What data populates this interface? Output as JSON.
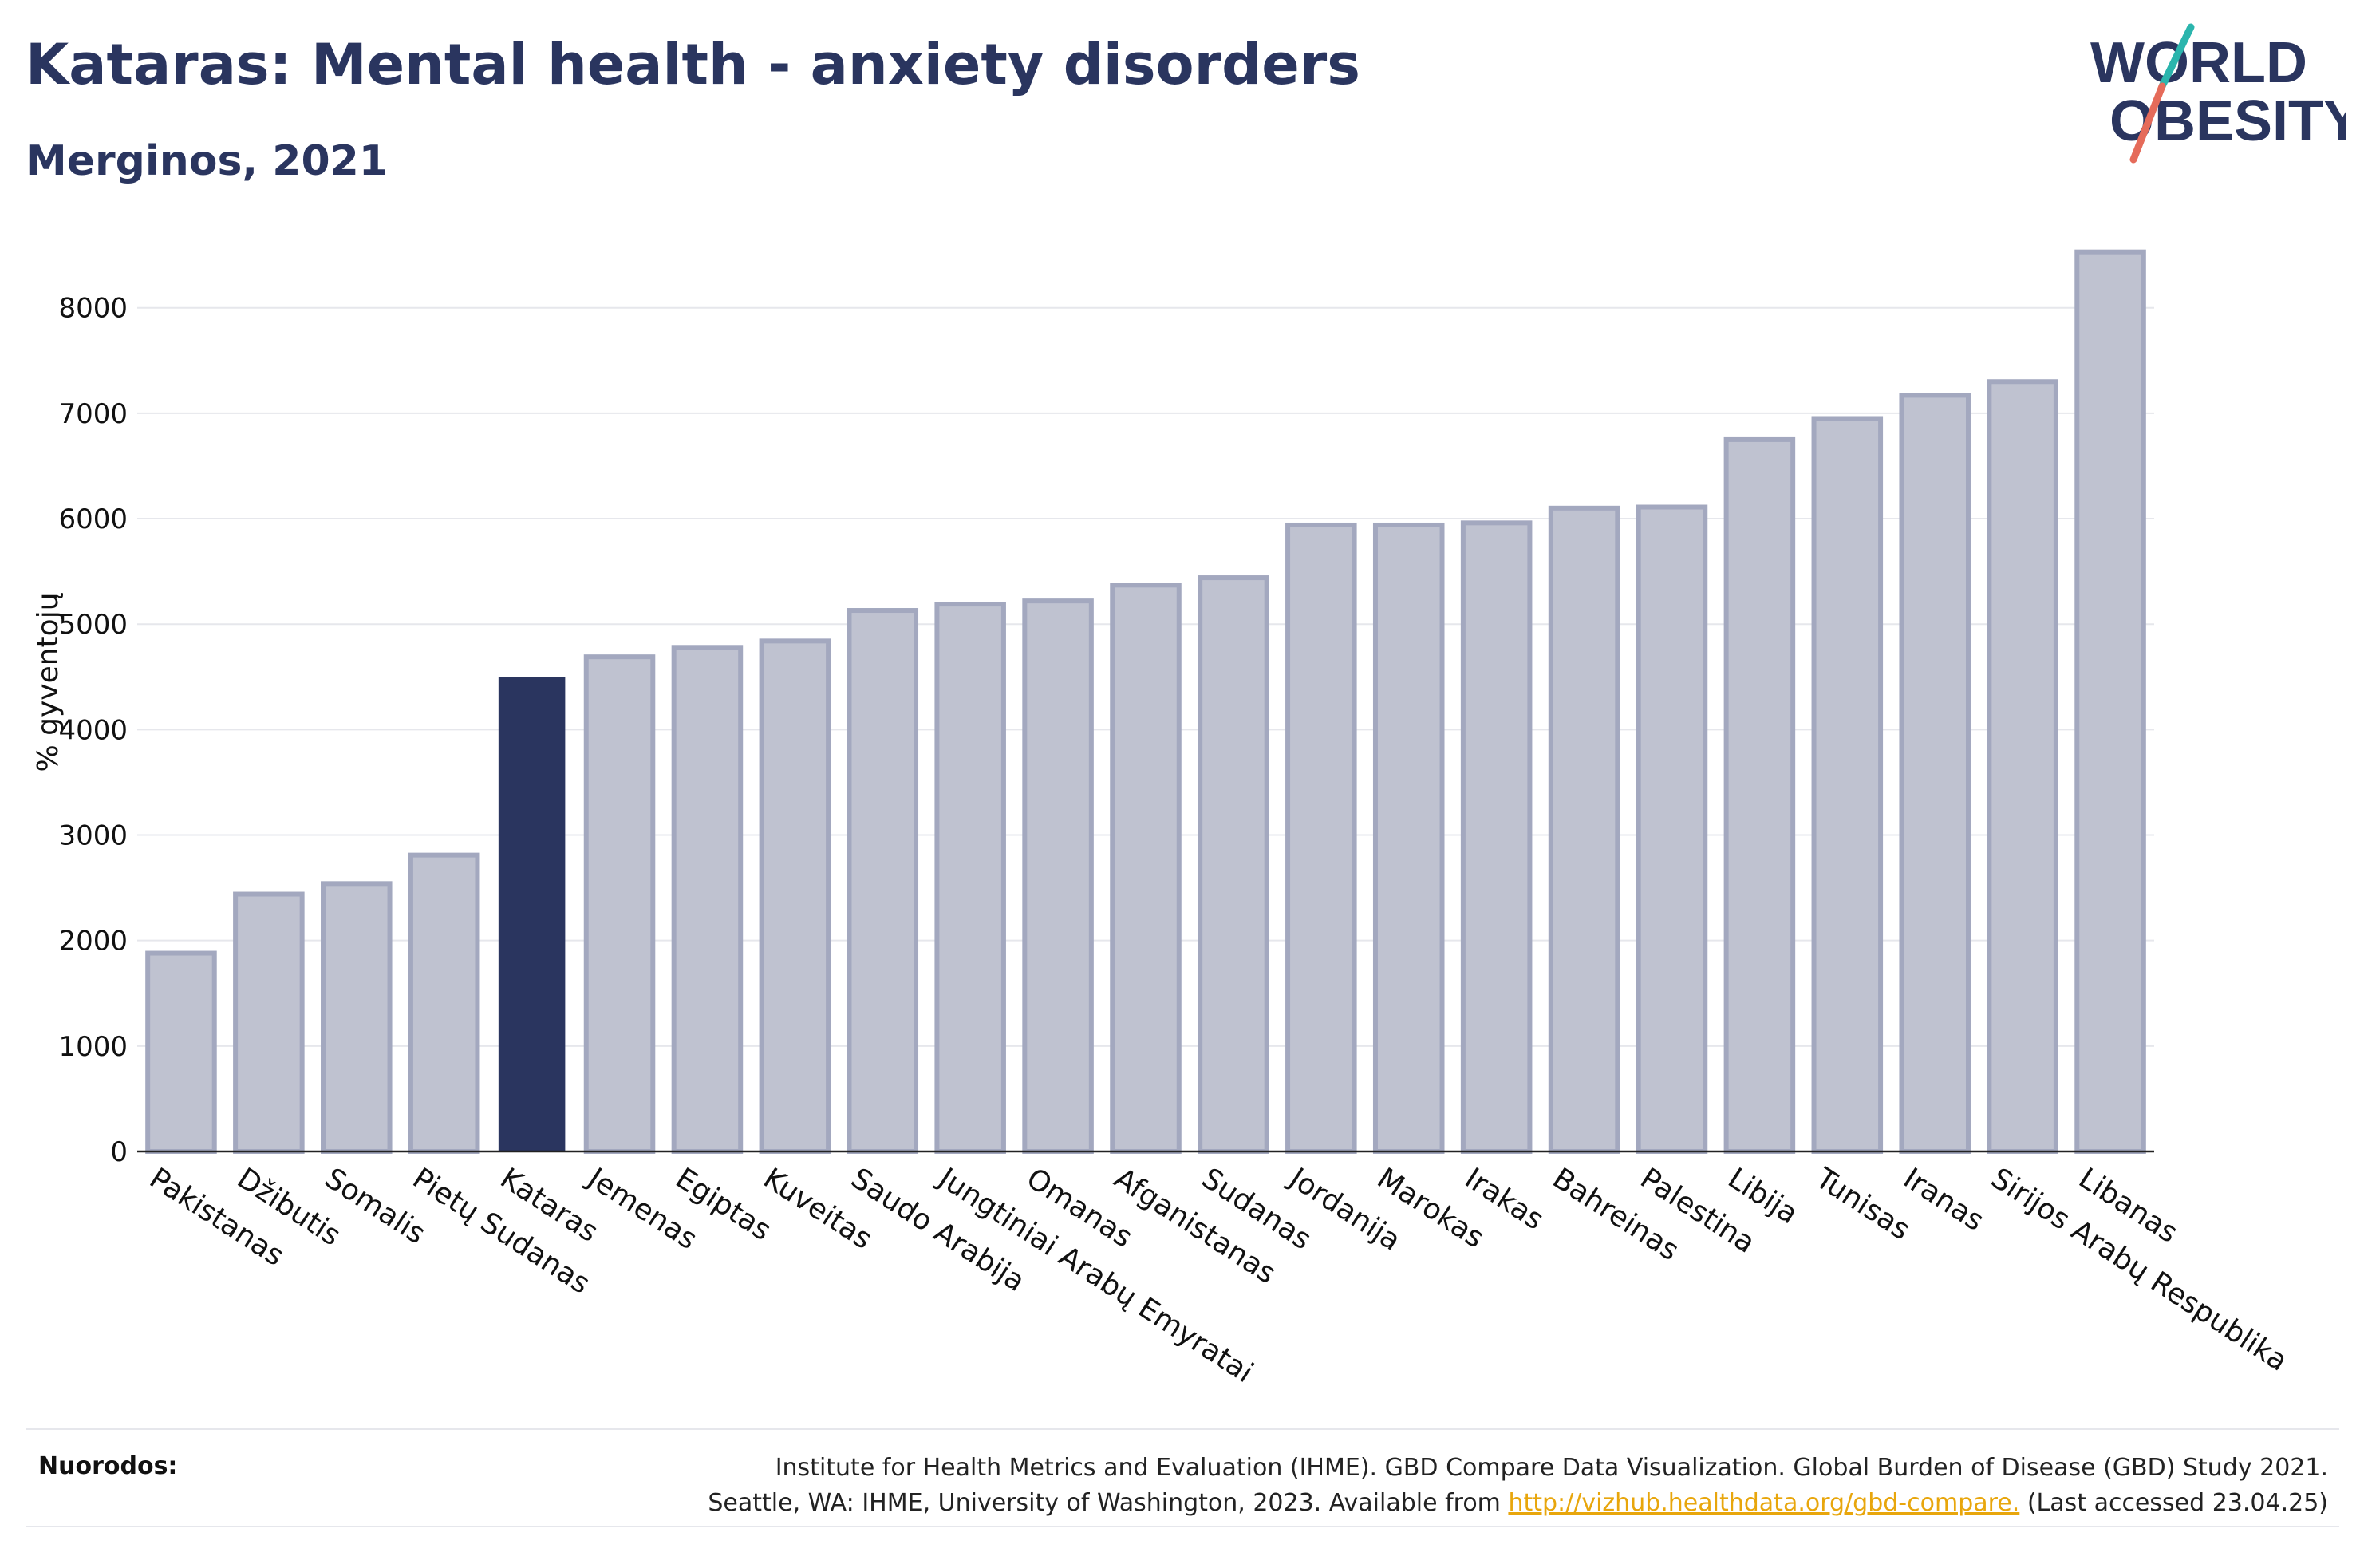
{
  "header": {
    "title": "Kataras: Mental health - anxiety disorders",
    "subtitle": "Merginos, 2021"
  },
  "logo": {
    "line1": "WORLD",
    "line2": "OBESITY"
  },
  "footer": {
    "label": "Nuorodos:",
    "line1": "Institute for Health Metrics and Evaluation (IHME). GBD Compare Data Visualization. Global Burden of Disease (GBD) Study 2021.",
    "line2_prefix": "Seattle, WA: IHME, University of Washington, 2023. Available from ",
    "link": "http://vizhub.healthdata.org/gbd-compare.",
    "line2_suffix": " (Last accessed 23.04.25)"
  },
  "colors": {
    "bar": "#bfc2d0",
    "bar_stroke": "#a3a8bf",
    "highlight": "#2a355f",
    "grid": "#e6e7ec",
    "text": "#2a355f"
  },
  "chart_data": {
    "type": "bar",
    "title": "Kataras: Mental health - anxiety disorders",
    "subtitle": "Merginos, 2021",
    "xlabel": "",
    "ylabel": "% gyventojų",
    "ylim": [
      0,
      8800
    ],
    "yticks": [
      0,
      1000,
      2000,
      3000,
      4000,
      5000,
      6000,
      7000,
      8000
    ],
    "grid": true,
    "highlight": "Kataras",
    "categories": [
      "Pakistanas",
      "Džibutis",
      "Somalis",
      "Pietų Sudanas",
      "Kataras",
      "Jemenas",
      "Egiptas",
      "Kuveitas",
      "Saudo Arabija",
      "Jungtiniai Arabų Emyratai",
      "Omanas",
      "Afganistanas",
      "Sudanas",
      "Jordanija",
      "Marokas",
      "Irakas",
      "Bahreinas",
      "Palestina",
      "Libija",
      "Tunisas",
      "Iranas",
      "Sirijos Arabų Respublika",
      "Libanas"
    ],
    "values": [
      1880,
      2440,
      2540,
      2810,
      4500,
      4690,
      4780,
      4840,
      5130,
      5190,
      5220,
      5370,
      5440,
      5940,
      5940,
      5960,
      6100,
      6110,
      6750,
      6950,
      7170,
      7300,
      8530
    ]
  }
}
